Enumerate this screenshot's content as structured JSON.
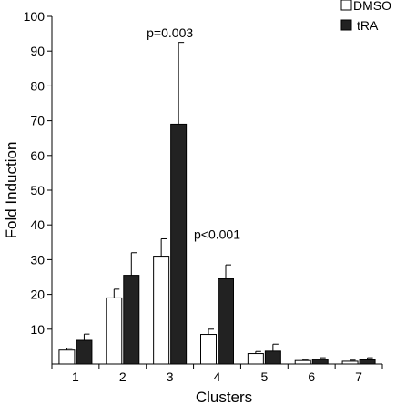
{
  "chart_data": {
    "type": "bar",
    "xlabel": "Clusters",
    "ylabel": "Fold Induction",
    "ylim": [
      0,
      100
    ],
    "yticks": [
      "100",
      "90",
      "80",
      "70",
      "60",
      "50",
      "40",
      "30",
      "20",
      "10"
    ],
    "categories": [
      "1",
      "2",
      "3",
      "4",
      "5",
      "6",
      "7"
    ],
    "series": [
      {
        "name": "DMSO",
        "color": "#ffffff",
        "values": [
          4,
          19,
          31,
          8.5,
          3,
          1,
          0.8
        ],
        "errors": [
          0.5,
          2.5,
          5,
          1.5,
          0.6,
          0.3,
          0.3
        ]
      },
      {
        "name": "tRA",
        "color": "#222222",
        "values": [
          6.8,
          25.5,
          69,
          24.5,
          3.7,
          1.3,
          1.2
        ],
        "errors": [
          1.8,
          6.5,
          23.5,
          4,
          2,
          0.5,
          0.6
        ]
      }
    ],
    "annotations": [
      {
        "text": "p=0.003",
        "category": "3",
        "y": 94
      },
      {
        "text": "p<0.001",
        "category": "4",
        "y": 36
      }
    ],
    "legend_position": "top-right"
  }
}
